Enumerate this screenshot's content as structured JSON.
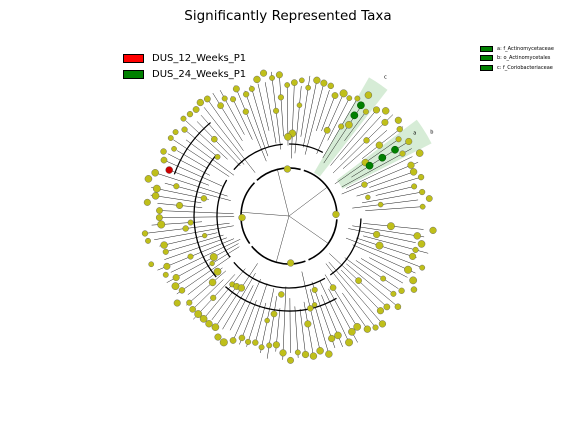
{
  "title": "Significantly Represented Taxa",
  "legend_groups": [
    {
      "label": "DUS_12_Weeks_P1",
      "color": "#ff0000"
    },
    {
      "label": "DUS_24_Weeks_P1",
      "color": "#008000"
    }
  ],
  "biomarkers": [
    {
      "label": "a: f_Actinomycetaceae",
      "color": "#008000"
    },
    {
      "label": "b: o_Actinomycetales",
      "color": "#008000"
    },
    {
      "label": "c: f_Coriobacteriaceae",
      "color": "#008000"
    }
  ],
  "clade_letters": [
    "c",
    "a",
    "b"
  ],
  "colors": {
    "node_default": "#bfbf1a",
    "node_edge": "#555555",
    "highlight_green": "#008000",
    "highlight_red": "#cc0000",
    "shade_green": "#b5ddb5"
  }
}
